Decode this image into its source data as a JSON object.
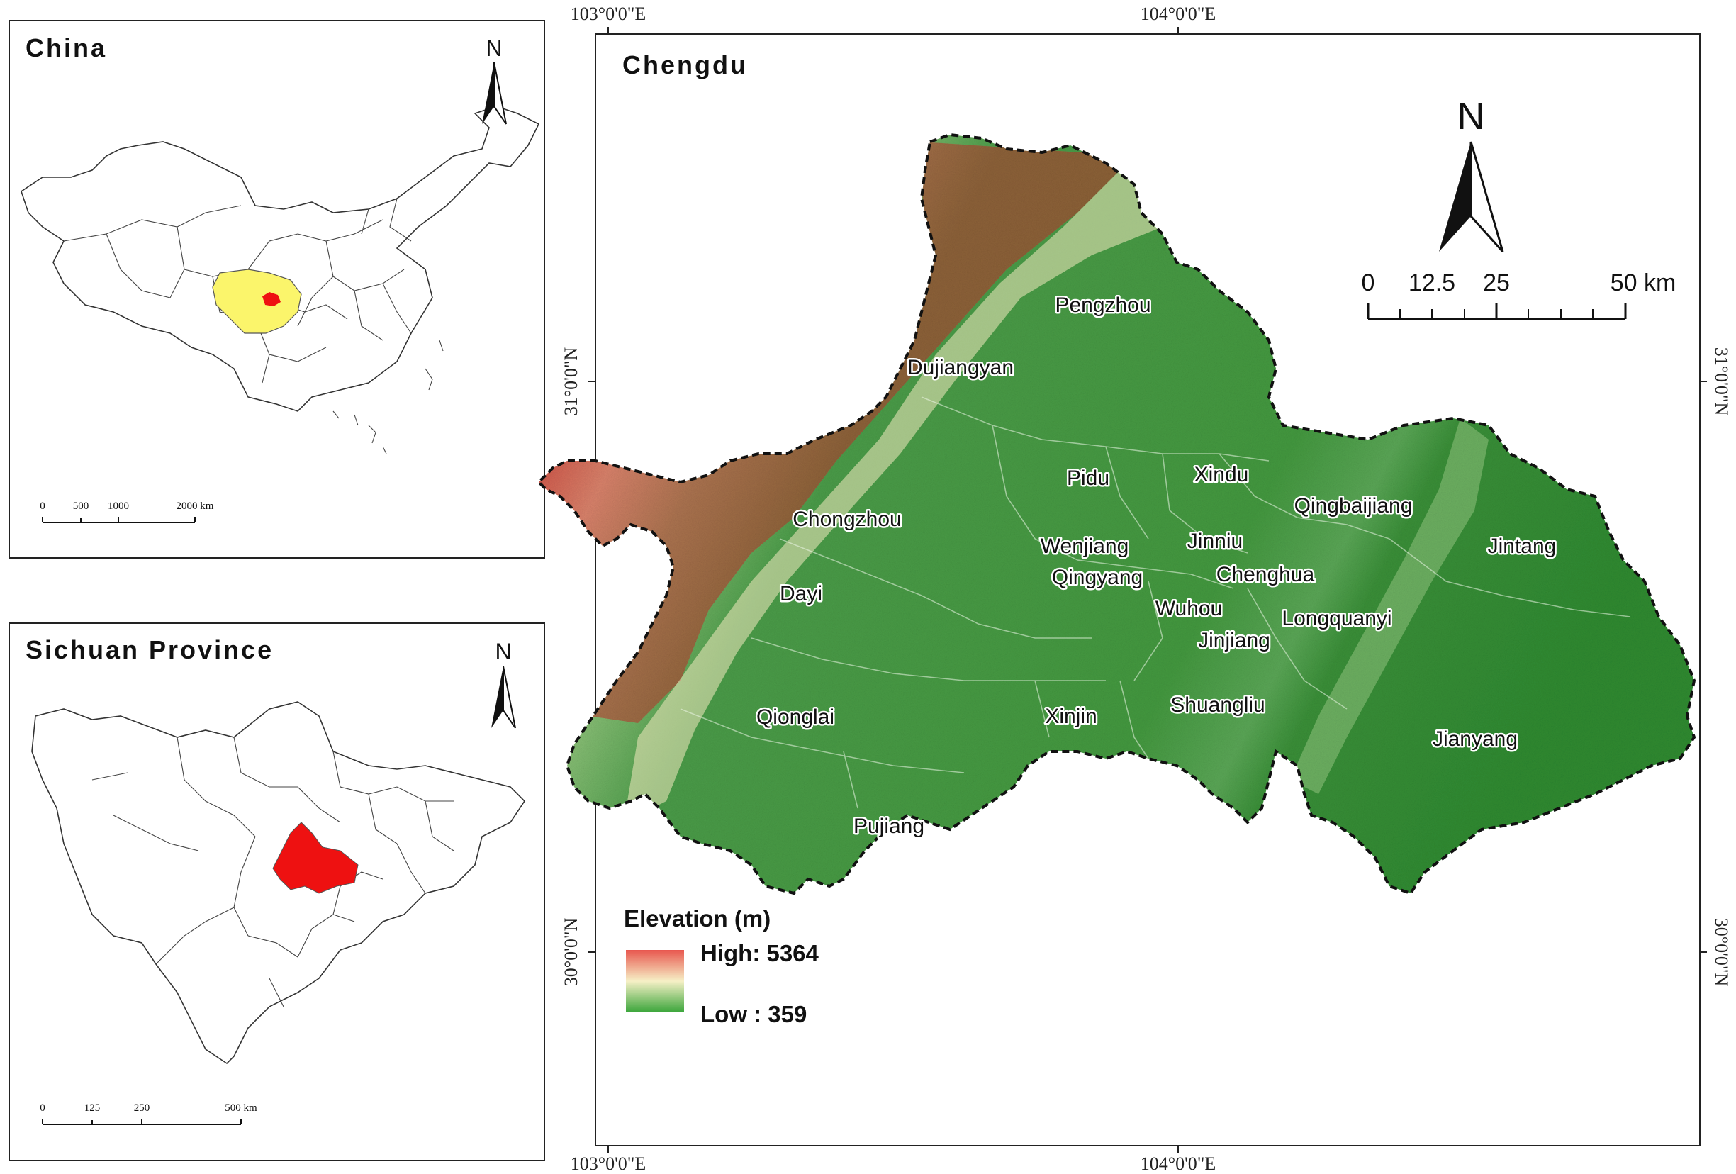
{
  "panels": {
    "china": {
      "title": "China",
      "north": "N",
      "scale": [
        "0",
        "500",
        "1000",
        "2000 km"
      ]
    },
    "sichuan": {
      "title": "Sichuan Province",
      "north": "N",
      "scale": [
        "0",
        "125",
        "250",
        "500 km"
      ]
    },
    "chengdu": {
      "title": "Chengdu",
      "north": "N",
      "scale": [
        "0",
        "12.5",
        "25",
        "50 km"
      ],
      "coords": {
        "top_left": "103°0'0\"E",
        "top_right": "104°0'0\"E",
        "bottom_left": "103°0'0\"E",
        "bottom_right": "104°0'0\"E",
        "left_upper": "31°0'0\"N",
        "left_lower": "30°0'0\"N",
        "right_upper": "31°0'0\"N",
        "right_lower": "30°0'0\"N"
      },
      "places": {
        "pengzhou": "Pengzhou",
        "dujiangyan": "Dujiangyan",
        "pidu": "Pidu",
        "xindu": "Xindu",
        "qingbaijiang": "Qingbaijiang",
        "chongzhou": "Chongzhou",
        "wenjiang": "Wenjiang",
        "jinniu": "Jinniu",
        "jintang": "Jintang",
        "qingyang": "Qingyang",
        "chenghua": "Chenghua",
        "dayi": "Dayi",
        "wuhou": "Wuhou",
        "longquanyi": "Longquanyi",
        "jinjiang": "Jinjiang",
        "qionglai": "Qionglai",
        "xinjin": "Xinjin",
        "shuangliu": "Shuangliu",
        "jianyang": "Jianyang",
        "pujiang": "Pujiang"
      },
      "legend": {
        "title": "Elevation (m)",
        "high": "High: 5364",
        "low": "Low : 359",
        "colors": [
          "#e8574f",
          "#f6f0c6",
          "#3aa53a"
        ]
      }
    },
    "highlight_colors": {
      "sichuan": "#fbf56b",
      "chengdu": "#ee1111"
    }
  }
}
